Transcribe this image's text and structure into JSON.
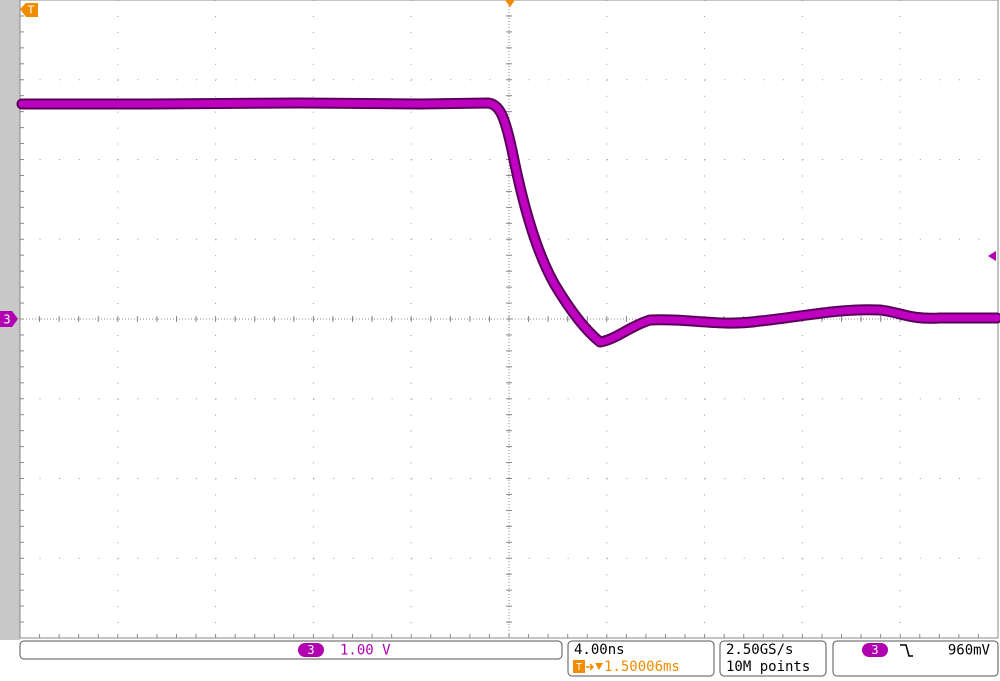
{
  "markers": {
    "trigger_position": "T",
    "channel_ground": "3"
  },
  "status_bar": {
    "channel_box": {
      "channel": "3",
      "scale": "1.00 V"
    },
    "timebase": {
      "scale": "4.00ns",
      "trigger_delay": "1.50006ms"
    },
    "acquisition": {
      "sample_rate": "2.50GS/s",
      "record_length": "10M points"
    },
    "trigger": {
      "channel": "3",
      "level": "960mV"
    }
  }
}
